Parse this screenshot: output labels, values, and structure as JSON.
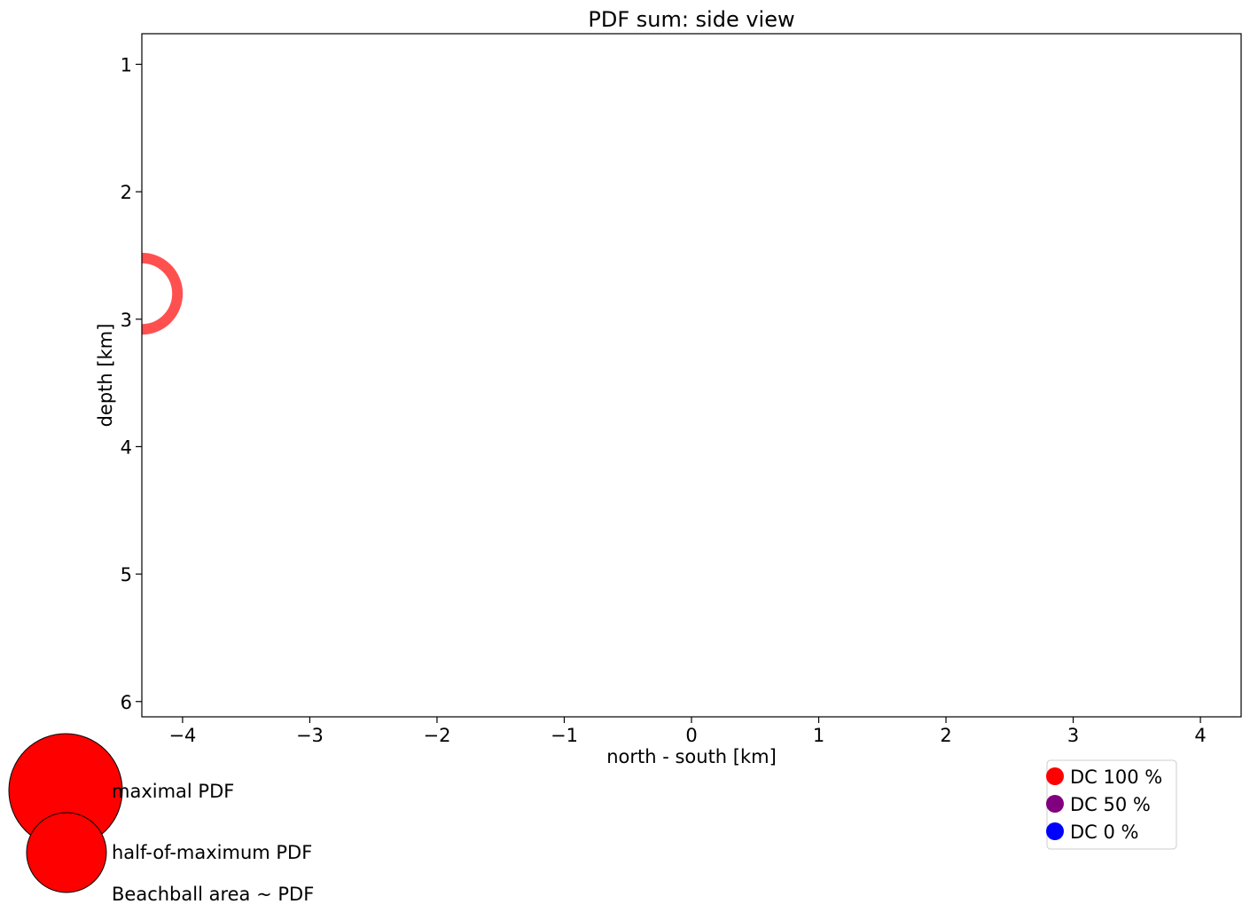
{
  "chart_data": {
    "type": "scatter",
    "title": "PDF sum: side view",
    "xlabel": "north - south [km]",
    "ylabel": "depth [km]",
    "xlim": [
      -4.32,
      4.32
    ],
    "ylim": [
      0.76,
      6.12
    ],
    "y_inverted": true,
    "xticks": [
      -4,
      -3,
      -2,
      -1,
      0,
      1,
      2,
      3,
      4
    ],
    "xtick_labels": [
      "−4",
      "−3",
      "−2",
      "−1",
      "0",
      "1",
      "2",
      "3",
      "4"
    ],
    "yticks": [
      1,
      2,
      3,
      4,
      5,
      6
    ],
    "ytick_labels": [
      "1",
      "2",
      "3",
      "4",
      "5",
      "6"
    ],
    "grid": false,
    "points": [
      {
        "x": -4.32,
        "y": 2.8,
        "ring_radius_km": 0.28,
        "dc_percent": 100,
        "color": "#ff5050"
      }
    ],
    "size_legend": {
      "entries": [
        {
          "label": "maximal PDF",
          "relative_pdf": 1.0,
          "color": "#ff0000"
        },
        {
          "label": "half-of-maximum PDF",
          "relative_pdf": 0.5,
          "color": "#ff0000"
        }
      ],
      "note": "Beachball area ~ PDF"
    },
    "color_legend": {
      "placement": "bottom-right",
      "entries": [
        {
          "label": "DC 100 %",
          "color": "#ff0000"
        },
        {
          "label": "DC 50 %",
          "color": "#800080"
        },
        {
          "label": "DC 0 %",
          "color": "#0000ff"
        }
      ]
    }
  }
}
